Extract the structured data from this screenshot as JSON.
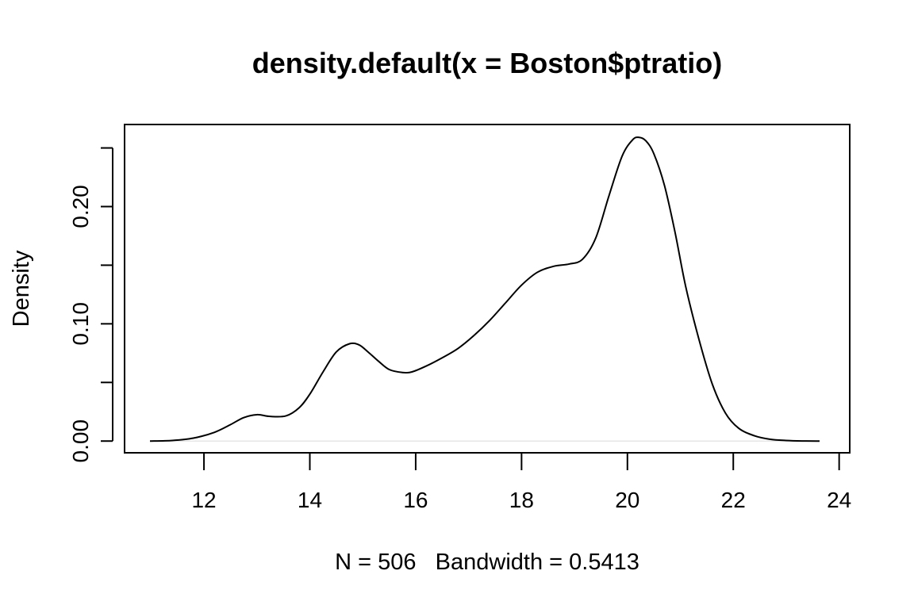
{
  "chart_data": {
    "type": "line",
    "title": "density.default(x = Boston$ptratio)",
    "xlabel": "N = 506   Bandwidth = 0.5413",
    "ylabel": "Density",
    "xlim": [
      10.5,
      24.2
    ],
    "ylim": [
      -0.01,
      0.27
    ],
    "x_ticks": [
      12,
      14,
      16,
      18,
      20,
      22,
      24
    ],
    "x_tick_labels": [
      "12",
      "14",
      "16",
      "18",
      "20",
      "22",
      "24"
    ],
    "y_ticks": [
      0.0,
      0.05,
      0.1,
      0.15,
      0.2,
      0.25
    ],
    "y_tick_labels": [
      "0.00",
      "",
      "0.10",
      "",
      "0.20",
      ""
    ],
    "grid": false,
    "series": [
      {
        "x": [
          10.98,
          11.4,
          11.8,
          12.2,
          12.5,
          12.75,
          13.0,
          13.25,
          13.55,
          13.8,
          14.0,
          14.25,
          14.5,
          14.75,
          14.93,
          15.1,
          15.3,
          15.5,
          15.75,
          15.93,
          16.2,
          16.5,
          16.8,
          17.1,
          17.4,
          17.7,
          18.0,
          18.3,
          18.6,
          18.9,
          19.15,
          19.4,
          19.65,
          19.9,
          20.1,
          20.22,
          20.35,
          20.5,
          20.7,
          20.9,
          21.1,
          21.35,
          21.6,
          21.85,
          22.1,
          22.4,
          22.7,
          23.0,
          23.3,
          23.63
        ],
        "y": [
          0.0,
          0.0005,
          0.0025,
          0.0075,
          0.014,
          0.02,
          0.0225,
          0.021,
          0.0215,
          0.0285,
          0.04,
          0.059,
          0.076,
          0.083,
          0.082,
          0.076,
          0.068,
          0.061,
          0.0585,
          0.059,
          0.064,
          0.071,
          0.079,
          0.09,
          0.103,
          0.118,
          0.133,
          0.144,
          0.149,
          0.151,
          0.155,
          0.173,
          0.209,
          0.243,
          0.257,
          0.259,
          0.256,
          0.245,
          0.218,
          0.178,
          0.132,
          0.087,
          0.049,
          0.024,
          0.011,
          0.0045,
          0.0015,
          0.0005,
          0.0001,
          0.0
        ]
      }
    ]
  },
  "colors": {
    "line": "#000000",
    "axis": "#000000",
    "background": "#ffffff"
  }
}
